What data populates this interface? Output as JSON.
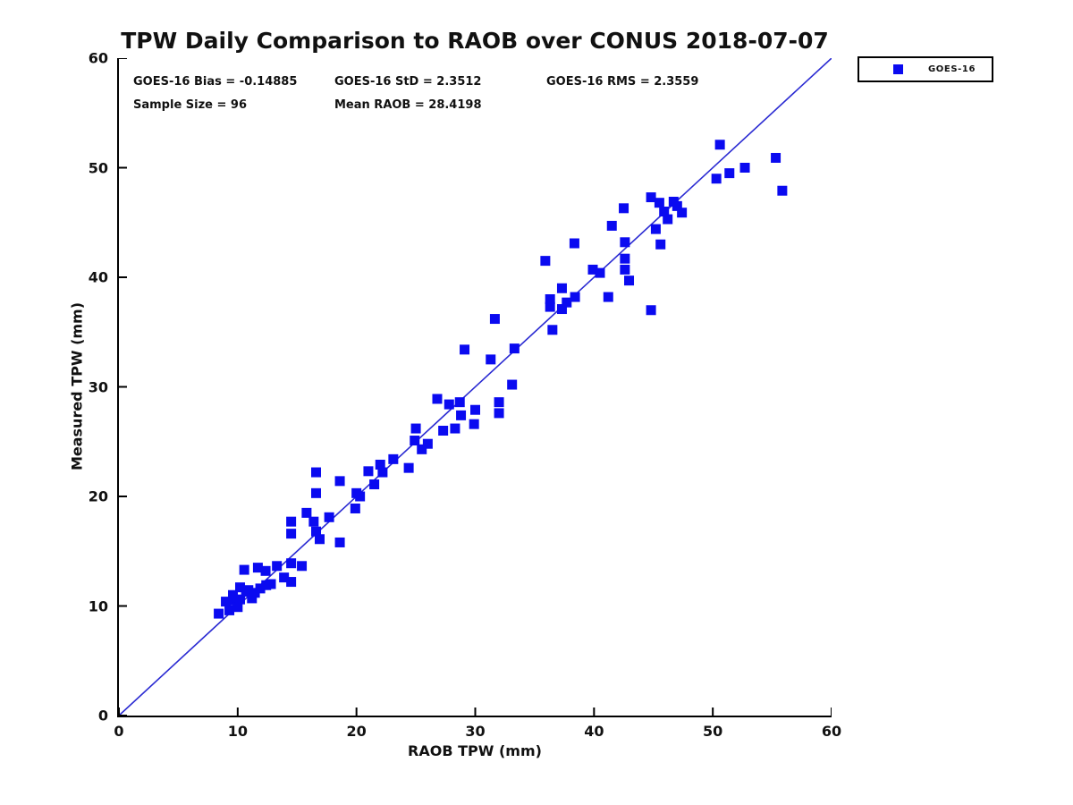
{
  "title": "TPW Daily Comparison to RAOB over CONUS 2018-07-07",
  "stats_text": {
    "bias": "GOES-16 Bias = -0.14885",
    "std": "GOES-16 StD = 2.3512",
    "rms": "GOES-16 RMS = 2.3559",
    "sample": "Sample Size = 96",
    "mean_raob": "Mean RAOB = 28.4198"
  },
  "legend": {
    "label": "GOES-16"
  },
  "colors": {
    "marker": "#0a0af0",
    "line": "#2a2ad2",
    "axis": "#000000"
  },
  "chart_data": {
    "type": "scatter",
    "title": "TPW Daily Comparison to RAOB over CONUS 2018-07-07",
    "xlabel": "RAOB TPW (mm)",
    "ylabel": "Measured TPW (mm)",
    "xlim": [
      0,
      60
    ],
    "ylim": [
      0,
      60
    ],
    "xticks": [
      0,
      10,
      20,
      30,
      40,
      50,
      60
    ],
    "yticks": [
      0,
      10,
      20,
      30,
      40,
      50,
      60
    ],
    "grid": false,
    "legend_position": "top-right-outside",
    "reference_line": {
      "from": [
        0,
        0
      ],
      "to": [
        60,
        60
      ]
    },
    "stats": {
      "goes16_bias": -0.14885,
      "goes16_std": 2.3512,
      "goes16_rms": 2.3559,
      "sample_size": 96,
      "mean_raob": 28.4198
    },
    "series": [
      {
        "name": "GOES-16",
        "marker": "filled-square",
        "points": [
          [
            8.4,
            9.3
          ],
          [
            9.0,
            10.4
          ],
          [
            9.3,
            9.6
          ],
          [
            9.6,
            11.0
          ],
          [
            9.7,
            10.5
          ],
          [
            10.0,
            9.9
          ],
          [
            10.2,
            11.7
          ],
          [
            10.2,
            10.6
          ],
          [
            10.55,
            13.3
          ],
          [
            10.7,
            11.3
          ],
          [
            10.9,
            11.45
          ],
          [
            11.2,
            10.7
          ],
          [
            11.45,
            11.2
          ],
          [
            11.7,
            13.5
          ],
          [
            11.9,
            11.6
          ],
          [
            12.35,
            13.2
          ],
          [
            12.4,
            11.9
          ],
          [
            12.8,
            12.0
          ],
          [
            13.3,
            13.65
          ],
          [
            13.9,
            12.6
          ],
          [
            14.5,
            13.9
          ],
          [
            14.5,
            12.2
          ],
          [
            15.4,
            13.65
          ],
          [
            14.5,
            17.7
          ],
          [
            14.5,
            16.6
          ],
          [
            15.8,
            18.5
          ],
          [
            16.4,
            17.7
          ],
          [
            16.6,
            16.8
          ],
          [
            16.6,
            20.3
          ],
          [
            16.6,
            22.2
          ],
          [
            16.9,
            16.1
          ],
          [
            17.7,
            18.1
          ],
          [
            18.6,
            15.8
          ],
          [
            18.6,
            21.4
          ],
          [
            19.9,
            18.9
          ],
          [
            20.0,
            20.3
          ],
          [
            20.3,
            20.0
          ],
          [
            21.0,
            22.3
          ],
          [
            21.5,
            21.1
          ],
          [
            22.0,
            22.9
          ],
          [
            22.2,
            22.2
          ],
          [
            23.1,
            23.4
          ],
          [
            24.4,
            22.6
          ],
          [
            24.9,
            25.1
          ],
          [
            25.0,
            26.2
          ],
          [
            25.5,
            24.3
          ],
          [
            26.0,
            24.8
          ],
          [
            26.8,
            28.9
          ],
          [
            27.3,
            26.0
          ],
          [
            27.8,
            28.4
          ],
          [
            28.3,
            26.2
          ],
          [
            28.7,
            28.6
          ],
          [
            28.8,
            27.4
          ],
          [
            29.1,
            33.4
          ],
          [
            29.9,
            26.6
          ],
          [
            30.0,
            27.9
          ],
          [
            31.3,
            32.5
          ],
          [
            31.65,
            36.2
          ],
          [
            32.0,
            28.6
          ],
          [
            32.0,
            27.6
          ],
          [
            33.1,
            30.2
          ],
          [
            33.3,
            33.5
          ],
          [
            35.9,
            41.5
          ],
          [
            36.3,
            38.0
          ],
          [
            36.3,
            37.3
          ],
          [
            36.5,
            35.2
          ],
          [
            37.3,
            39.0
          ],
          [
            37.3,
            37.1
          ],
          [
            37.7,
            37.7
          ],
          [
            38.35,
            43.1
          ],
          [
            38.4,
            38.2
          ],
          [
            39.9,
            40.7
          ],
          [
            40.5,
            40.4
          ],
          [
            41.2,
            38.2
          ],
          [
            41.5,
            44.7
          ],
          [
            42.5,
            46.3
          ],
          [
            42.6,
            43.2
          ],
          [
            42.6,
            41.7
          ],
          [
            42.6,
            40.7
          ],
          [
            42.95,
            39.7
          ],
          [
            44.8,
            47.3
          ],
          [
            44.8,
            37.0
          ],
          [
            45.2,
            44.4
          ],
          [
            45.5,
            46.8
          ],
          [
            45.6,
            43.0
          ],
          [
            45.9,
            46.0
          ],
          [
            46.2,
            45.3
          ],
          [
            46.7,
            46.9
          ],
          [
            47.0,
            46.5
          ],
          [
            47.4,
            45.9
          ],
          [
            50.3,
            49.0
          ],
          [
            50.6,
            52.1
          ],
          [
            51.4,
            49.5
          ],
          [
            52.7,
            50.0
          ],
          [
            55.3,
            50.9
          ],
          [
            55.85,
            47.9
          ]
        ]
      }
    ]
  }
}
